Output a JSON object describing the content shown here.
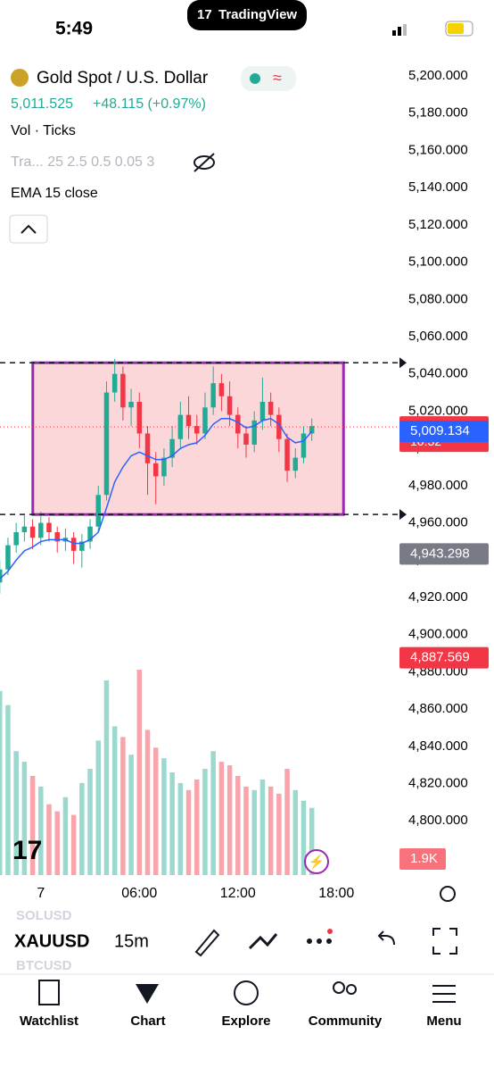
{
  "status_bar": {
    "time": "5:49",
    "app": "TradingView"
  },
  "chart_data": {
    "type": "candlestick",
    "title": "Gold Spot / U.S. Dollar",
    "last_price": "5,011.525",
    "change": "+48.115 (+0.97%)",
    "indicators": [
      "Vol · Ticks",
      "Tra... 25 2.5 0.5 0.05 3",
      "EMA 15 close"
    ],
    "x": [
      -2.5,
      -2,
      -1.5,
      -1,
      -0.5,
      0,
      0.5,
      1,
      1.5,
      2,
      2.5,
      3,
      3.5,
      4,
      4.5,
      5,
      5.5,
      6,
      6.5,
      7,
      7.5,
      8,
      8.5,
      9,
      9.5,
      10,
      10.5,
      11,
      11.5,
      12,
      12.5,
      13,
      13.5,
      14,
      14.5,
      15,
      15.5,
      16,
      16.5
    ],
    "open": [
      4928,
      4935,
      4948,
      4955,
      4958,
      4952,
      4960,
      4955,
      4950,
      4952,
      4945,
      4950,
      4958,
      4975,
      5030,
      5040,
      5022,
      5025,
      5008,
      4992,
      4985,
      4995,
      5005,
      5018,
      5012,
      5008,
      5022,
      5035,
      5028,
      5018,
      5008,
      5002,
      5015,
      5025,
      5018,
      5005,
      4988,
      4995,
      5008
    ],
    "high": [
      4940,
      4952,
      4960,
      4964,
      4962,
      4966,
      4963,
      4958,
      4957,
      4955,
      4954,
      4962,
      4980,
      5036,
      5048,
      5044,
      5032,
      5030,
      5012,
      4998,
      5000,
      5012,
      5025,
      5028,
      5018,
      5030,
      5044,
      5040,
      5036,
      5022,
      5012,
      5020,
      5038,
      5030,
      5022,
      5008,
      5000,
      5012,
      5016
    ],
    "low": [
      4922,
      4932,
      4944,
      4950,
      4946,
      4948,
      4950,
      4944,
      4945,
      4938,
      4936,
      4946,
      4955,
      4972,
      5025,
      5015,
      5012,
      5000,
      4975,
      4970,
      4980,
      4990,
      5000,
      5005,
      5002,
      5005,
      5018,
      5020,
      5012,
      5000,
      4995,
      4998,
      5010,
      5012,
      4998,
      4982,
      4984,
      4992,
      5004
    ],
    "close": [
      4935,
      4948,
      4955,
      4958,
      4952,
      4960,
      4955,
      4950,
      4952,
      4945,
      4950,
      4958,
      4975,
      5030,
      5040,
      5022,
      5025,
      5008,
      4992,
      4985,
      4995,
      5005,
      5018,
      5012,
      5008,
      5022,
      5035,
      5028,
      5018,
      5008,
      5002,
      5015,
      5025,
      5018,
      5005,
      4988,
      4995,
      5008,
      5012
    ],
    "volume": [
      5200,
      4800,
      3500,
      3200,
      2800,
      2500,
      2000,
      1800,
      2200,
      1700,
      2600,
      3000,
      3800,
      5500,
      4200,
      3900,
      3400,
      5800,
      4100,
      3600,
      3300,
      2900,
      2600,
      2400,
      2700,
      3000,
      3500,
      3200,
      3100,
      2800,
      2500,
      2400,
      2700,
      2500,
      2300,
      3000,
      2400,
      2100,
      1900
    ],
    "ema": [
      4930,
      4934,
      4940,
      4945,
      4947,
      4950,
      4951,
      4951,
      4951,
      4949,
      4949,
      4951,
      4955,
      4968,
      4982,
      4990,
      4996,
      4998,
      4996,
      4994,
      4994,
      4996,
      5000,
      5002,
      5003,
      5007,
      5013,
      5016,
      5016,
      5014,
      5011,
      5012,
      5015,
      5016,
      5013,
      5006,
      5003,
      5004,
      5009.134
    ],
    "up_color": "#22ab94",
    "down_color": "#f23645",
    "ema_color": "#2962ff",
    "xlim": [
      -2.486,
      21.838
    ],
    "xticks": [
      {
        "value": 0,
        "label": "7"
      },
      {
        "value": 6,
        "label": "06:00"
      },
      {
        "value": 12,
        "label": "12:00"
      },
      {
        "value": 18,
        "label": "18:00"
      }
    ],
    "ylim": [
      4768,
      5212
    ],
    "yticks": [
      {
        "value": 5200,
        "label": "5,200.000"
      },
      {
        "value": 5180,
        "label": "5,180.000"
      },
      {
        "value": 5160,
        "label": "5,160.000"
      },
      {
        "value": 5140,
        "label": "5,140.000"
      },
      {
        "value": 5120,
        "label": "5,120.000"
      },
      {
        "value": 5100,
        "label": "5,100.000"
      },
      {
        "value": 5080,
        "label": "5,080.000"
      },
      {
        "value": 5060,
        "label": "5,060.000"
      },
      {
        "value": 5040,
        "label": "5,040.000"
      },
      {
        "value": 5020,
        "label": "5,020.000"
      },
      {
        "value": 5000,
        "label": "5,000.000"
      },
      {
        "value": 4980,
        "label": "4,980.000"
      },
      {
        "value": 4960,
        "label": "4,960.000"
      },
      {
        "value": 4940,
        "label": "4,940.000"
      },
      {
        "value": 4920,
        "label": "4,920.000"
      },
      {
        "value": 4900,
        "label": "4,900.000"
      },
      {
        "value": 4880,
        "label": "4,880.000"
      },
      {
        "value": 4860,
        "label": "4,860.000"
      },
      {
        "value": 4840,
        "label": "4,840.000"
      },
      {
        "value": 4820,
        "label": "4,820.000"
      },
      {
        "value": 4800,
        "label": "4,800.000"
      }
    ],
    "price_labels": [
      {
        "value": 5011.525,
        "label": "5,011.525",
        "color": "#f23645"
      },
      {
        "value": 5009.134,
        "label": "5,009.134",
        "color": "#2962ff"
      },
      {
        "value": 4943.298,
        "label": "4,943.298",
        "color": "#787b86"
      },
      {
        "value": 4887.569,
        "label": "4,887.569",
        "color": "#f23645"
      }
    ],
    "countdown": "10:32",
    "volume_label": "1.9K",
    "rectangle": {
      "x": [
        -0.49,
        18.43
      ],
      "y": [
        4964.5,
        5046
      ]
    }
  },
  "toolbar": {
    "symbols": [
      "SOLUSD",
      "XAUUSD",
      "BTCUSD"
    ],
    "interval": "15m"
  },
  "nav": [
    "Watchlist",
    "Chart",
    "Explore",
    "Community",
    "Menu"
  ]
}
